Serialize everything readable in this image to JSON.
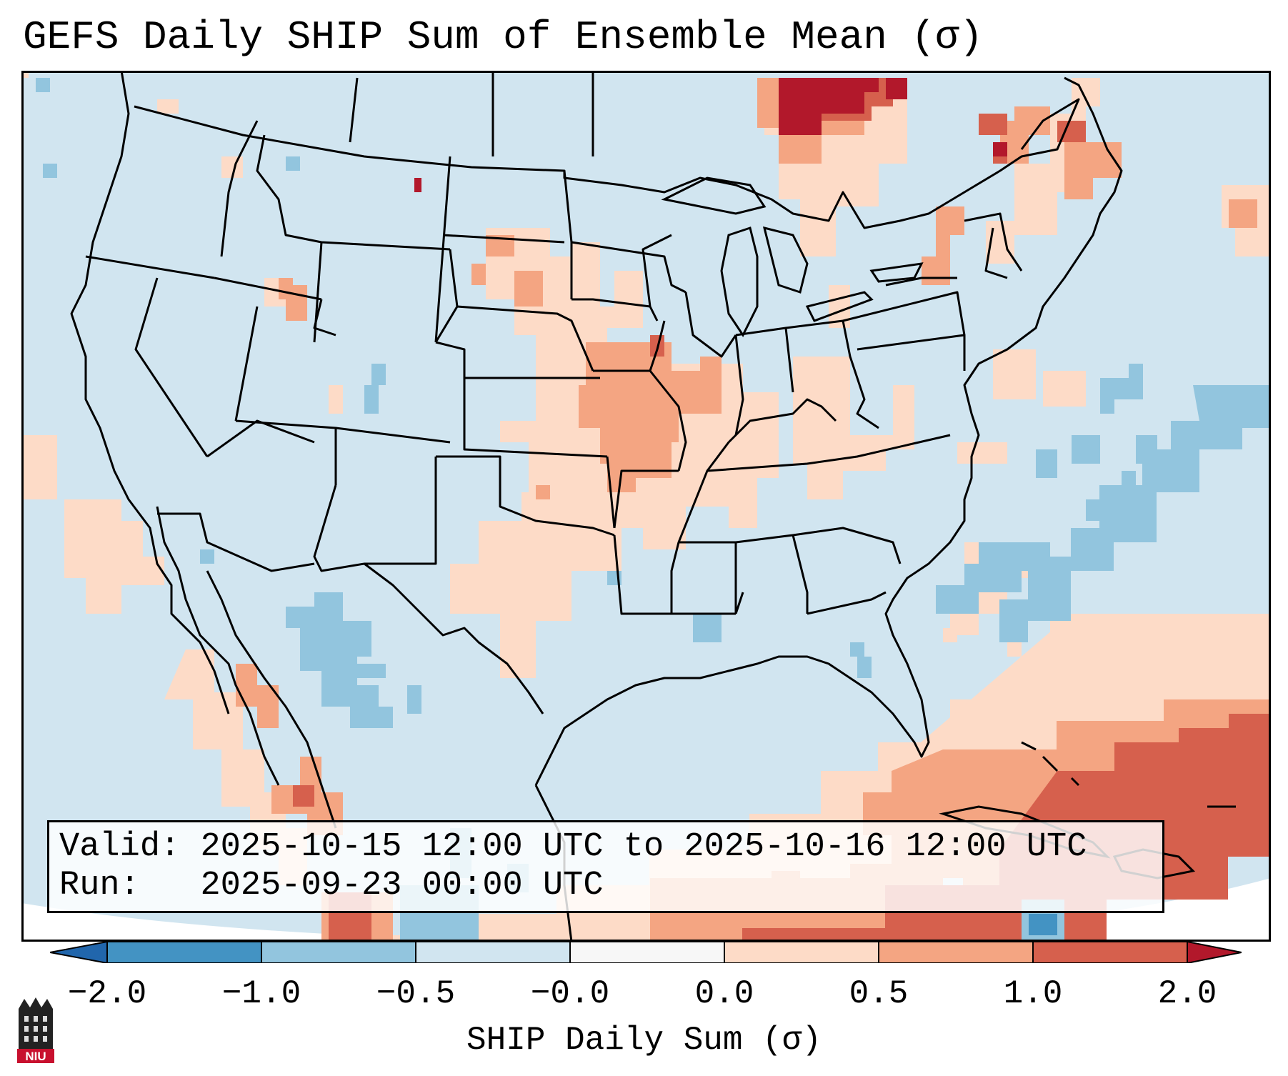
{
  "title": "GEFS Daily SHIP Sum of Ensemble Mean (σ)",
  "info": {
    "valid_label": "Valid:",
    "valid_value": "2025-10-15 12:00 UTC to 2025-10-16 12:00 UTC",
    "run_label": "Run:",
    "run_value": "2025-09-23 00:00 UTC"
  },
  "colorbar": {
    "label": "SHIP Daily Sum (σ)",
    "ticks": [
      "−2.0",
      "−1.0",
      "−0.5",
      "−0.0",
      "0.0",
      "0.5",
      "1.0",
      "2.0"
    ],
    "colors": [
      "#4393c3",
      "#92c5de",
      "#d1e5f0",
      "#f7f7f7",
      "#fddbc7",
      "#f4a582",
      "#d6604d"
    ],
    "under_color": "#2166ac",
    "over_color": "#b2182b"
  },
  "field_colors": {
    "background": "#d1e5f0",
    "light_blue": "#92c5de",
    "mid_blue": "#4393c3",
    "light_red": "#fddbc7",
    "mid_red": "#f4a582",
    "red": "#d6604d",
    "dark_red": "#b2182b"
  },
  "logo_text": "NIU"
}
